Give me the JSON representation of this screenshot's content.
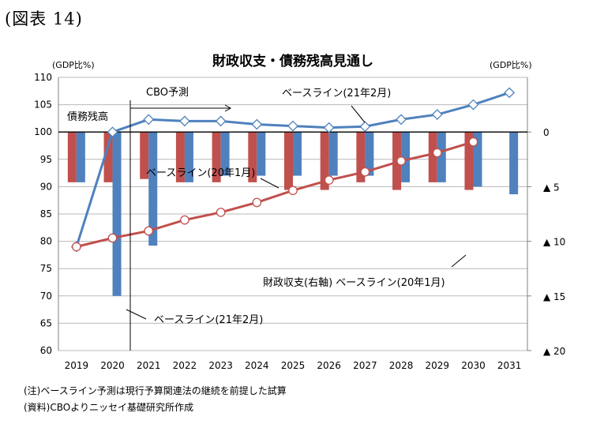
{
  "figure_label": "(図表 14)",
  "notes": [
    "(注)ベースライン予測は現行予算関連法の継続を前提した試算",
    "(資料)CBOよりニッセイ基礎研究所作成"
  ],
  "chart_data": {
    "type": "bar+line",
    "title": "財政収支・債務残高見通し",
    "left_unit": "(GDP比%)",
    "right_unit": "(GDP比%)",
    "categories": [
      "2019",
      "2020",
      "2021",
      "2022",
      "2023",
      "2024",
      "2025",
      "2026",
      "2027",
      "2028",
      "2029",
      "2030",
      "2031"
    ],
    "left_axis": {
      "min": 60,
      "max": 110,
      "ticks": [
        "60",
        "65",
        "70",
        "75",
        "80",
        "85",
        "90",
        "95",
        "100",
        "105",
        "110"
      ]
    },
    "right_axis": {
      "min": -20,
      "max": 5,
      "ticks": [
        {
          "value": 0,
          "label": "0"
        },
        {
          "value": -5,
          "label": "▲ 5"
        },
        {
          "value": -10,
          "label": "▲ 10"
        },
        {
          "value": -15,
          "label": "▲ 15"
        },
        {
          "value": -20,
          "label": "▲ 20"
        }
      ]
    },
    "grid": true,
    "lines": [
      {
        "name": "ベースライン(21年2月)",
        "color": "#4f81bd",
        "marker": "diamond",
        "values": [
          79,
          100,
          102.3,
          102,
          102,
          101.4,
          101.1,
          100.8,
          101,
          102.3,
          103.2,
          105,
          107.2
        ]
      },
      {
        "name": "ベースライン(20年1月)",
        "color": "#c0504d",
        "marker": "circle",
        "values": [
          79,
          80.6,
          81.9,
          83.9,
          85.3,
          87.1,
          89.3,
          91.2,
          92.7,
          94.7,
          96.2,
          98.2,
          null
        ]
      }
    ],
    "bars": [
      {
        "name": "財政収支(右軸) ベースライン(20年1月)",
        "color": "#c0504d",
        "values": [
          -4.6,
          -4.6,
          -4.3,
          -4.6,
          -4.6,
          -4.6,
          -5.3,
          -5.3,
          -4.6,
          -5.3,
          -4.6,
          -5.3,
          null
        ]
      },
      {
        "name": "財政収支(右軸) ベースライン(21年2月)",
        "color": "#4f81bd",
        "values": [
          -4.6,
          -15.0,
          -10.4,
          -4.6,
          -4.0,
          -4.0,
          -4.0,
          -4.0,
          -4.0,
          -4.6,
          -4.6,
          -5.0,
          -5.7
        ]
      }
    ],
    "annotations": {
      "cbo_label": "CBO予測",
      "debt_label": "債務残高",
      "line_2102": "ベースライン(21年2月)",
      "line_2001": "ベースライン(20年1月)",
      "bar_2001": "財政収支(右軸) ベースライン(20年1月)",
      "bar_2102": "ベースライン(21年2月)"
    }
  }
}
